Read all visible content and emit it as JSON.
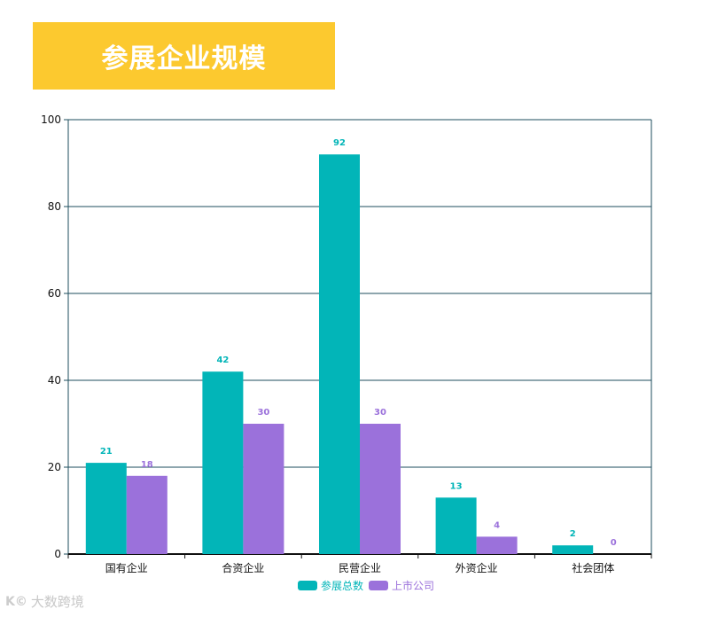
{
  "title": "参展企业规模",
  "watermark": {
    "logo": "K©",
    "text": "大数跨境"
  },
  "colors": {
    "banner": "#fcc92f",
    "series1": "#02b5b8",
    "series2": "#9b71db",
    "grid": "#1e4e5e"
  },
  "chart_data": {
    "type": "bar",
    "categories": [
      "国有企业",
      "合资企业",
      "民营企业",
      "外资企业",
      "社会团体"
    ],
    "series": [
      {
        "name": "参展总数",
        "values": [
          21,
          42,
          92,
          13,
          2
        ],
        "color": "#02b5b8"
      },
      {
        "name": "上市公司",
        "values": [
          18,
          30,
          30,
          4,
          0
        ],
        "color": "#9b71db"
      }
    ],
    "ylim": [
      0,
      100
    ],
    "yticks": [
      0,
      20,
      40,
      60,
      80,
      100
    ],
    "grid": true,
    "legend_position": "bottom"
  }
}
